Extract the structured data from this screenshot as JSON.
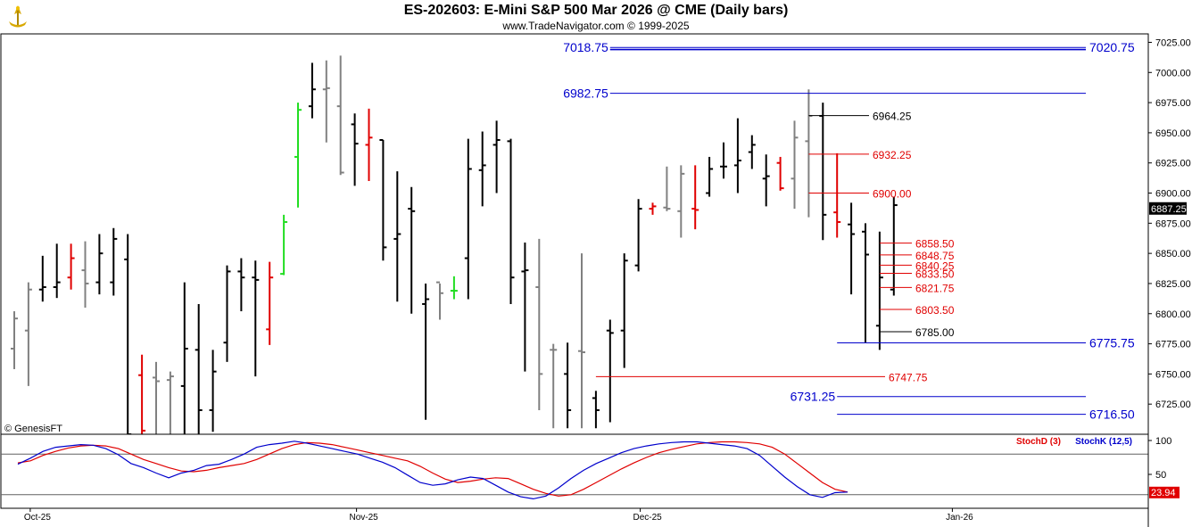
{
  "header": {
    "title": "ES-202603:  E-Mini S&P 500 Mar 2026 @ CME  (Daily bars)",
    "subtitle": "www.TradeNavigator.com © 1999-2025"
  },
  "watermark": "© GenesisFT",
  "logo_icon": "trade-navigator-logo-icon",
  "colors": {
    "bar_default": "#000000",
    "bar_gray": "#808080",
    "bar_red": "#e00000",
    "bar_green": "#22dd22",
    "level_blue": "#0000cc",
    "level_red": "#e00000",
    "level_black": "#000000",
    "stochD": "#e00000",
    "stochK": "#0000cc"
  },
  "chart_data": [
    {
      "type": "ohlc",
      "panel": "price",
      "ylim": [
        6700,
        7032
      ],
      "y_ticks": [
        6725,
        6750,
        6775,
        6800,
        6825,
        6850,
        6875,
        6900,
        6925,
        6950,
        6975,
        7000,
        7025
      ],
      "x_ticks": [
        {
          "label": "Oct-25",
          "bar": 1
        },
        {
          "label": "Nov-25",
          "bar": 24
        },
        {
          "label": "Dec-25",
          "bar": 44
        },
        {
          "label": "Jan-26",
          "bar": 66
        }
      ],
      "last_price": "6887.25",
      "bars": [
        {
          "o": 6771,
          "h": 6802,
          "l": 6754,
          "c": 6796,
          "color": "gray"
        },
        {
          "o": 6786,
          "h": 6826,
          "l": 6740,
          "c": 6820,
          "color": "gray"
        },
        {
          "o": 6820,
          "h": 6848,
          "l": 6810,
          "c": 6822,
          "color": "black"
        },
        {
          "o": 6822,
          "h": 6858,
          "l": 6813,
          "c": 6826,
          "color": "black"
        },
        {
          "o": 6830,
          "h": 6858,
          "l": 6820,
          "c": 6846,
          "color": "red"
        },
        {
          "o": 6836,
          "h": 6860,
          "l": 6805,
          "c": 6825,
          "color": "gray"
        },
        {
          "o": 6826,
          "h": 6866,
          "l": 6816,
          "c": 6850,
          "color": "black"
        },
        {
          "o": 6826,
          "h": 6871,
          "l": 6815,
          "c": 6862,
          "color": "black"
        },
        {
          "o": 6845,
          "h": 6866,
          "l": 6690,
          "c": 6700,
          "color": "black"
        },
        {
          "o": 6749,
          "h": 6766,
          "l": 6690,
          "c": 6703,
          "color": "red"
        },
        {
          "o": 6747,
          "h": 6760,
          "l": 6700,
          "c": 6744,
          "color": "gray"
        },
        {
          "o": 6745,
          "h": 6752,
          "l": 6700,
          "c": 6748,
          "color": "gray"
        },
        {
          "o": 6740,
          "h": 6826,
          "l": 6700,
          "c": 6771,
          "color": "black"
        },
        {
          "o": 6770,
          "h": 6808,
          "l": 6700,
          "c": 6720,
          "color": "black"
        },
        {
          "o": 6720,
          "h": 6770,
          "l": 6702,
          "c": 6752,
          "color": "black"
        },
        {
          "o": 6776,
          "h": 6840,
          "l": 6760,
          "c": 6835,
          "color": "black"
        },
        {
          "o": 6835,
          "h": 6846,
          "l": 6802,
          "c": 6830,
          "color": "black"
        },
        {
          "o": 6830,
          "h": 6844,
          "l": 6748,
          "c": 6828,
          "color": "black"
        },
        {
          "o": 6787,
          "h": 6843,
          "l": 6774,
          "c": 6830,
          "color": "red"
        },
        {
          "o": 6833,
          "h": 6882,
          "l": 6832,
          "c": 6876,
          "color": "green"
        },
        {
          "o": 6930,
          "h": 6975,
          "l": 6888,
          "c": 6969,
          "color": "green"
        },
        {
          "o": 6972,
          "h": 7008,
          "l": 6962,
          "c": 6986,
          "color": "black"
        },
        {
          "o": 6986,
          "h": 7010,
          "l": 6942,
          "c": 6987,
          "color": "gray"
        },
        {
          "o": 6972,
          "h": 7014,
          "l": 6915,
          "c": 6917,
          "color": "gray"
        },
        {
          "o": 6957,
          "h": 6966,
          "l": 6906,
          "c": 6941,
          "color": "black"
        },
        {
          "o": 6940,
          "h": 6970,
          "l": 6910,
          "c": 6946,
          "color": "red"
        },
        {
          "o": 6944,
          "h": 6944,
          "l": 6844,
          "c": 6855,
          "color": "black"
        },
        {
          "o": 6862,
          "h": 6918,
          "l": 6810,
          "c": 6866,
          "color": "black"
        },
        {
          "o": 6887,
          "h": 6905,
          "l": 6800,
          "c": 6885,
          "color": "black"
        },
        {
          "o": 6808,
          "h": 6825,
          "l": 6712,
          "c": 6812,
          "color": "black"
        },
        {
          "o": 6826,
          "h": 6825,
          "l": 6795,
          "c": 6817,
          "color": "gray"
        },
        {
          "o": 6819,
          "h": 6831,
          "l": 6812,
          "c": 6819,
          "color": "green"
        },
        {
          "o": 6846,
          "h": 6945,
          "l": 6812,
          "c": 6920,
          "color": "black"
        },
        {
          "o": 6919,
          "h": 6951,
          "l": 6889,
          "c": 6923,
          "color": "black"
        },
        {
          "o": 6940,
          "h": 6960,
          "l": 6900,
          "c": 6944,
          "color": "black"
        },
        {
          "o": 6943,
          "h": 6945,
          "l": 6808,
          "c": 6830,
          "color": "black"
        },
        {
          "o": 6835,
          "h": 6859,
          "l": 6752,
          "c": 6836,
          "color": "black"
        },
        {
          "o": 6822,
          "h": 6862,
          "l": 6720,
          "c": 6750,
          "color": "gray"
        },
        {
          "o": 6770,
          "h": 6775,
          "l": 6705,
          "c": 6770,
          "color": "gray"
        },
        {
          "o": 6750,
          "h": 6776,
          "l": 6705,
          "c": 6720,
          "color": "black"
        },
        {
          "o": 6769,
          "h": 6850,
          "l": 6705,
          "c": 6768,
          "color": "gray"
        },
        {
          "o": 6730,
          "h": 6736,
          "l": 6705,
          "c": 6720,
          "color": "black"
        },
        {
          "o": 6786,
          "h": 6795,
          "l": 6710,
          "c": 6784,
          "color": "black"
        },
        {
          "o": 6786,
          "h": 6850,
          "l": 6755,
          "c": 6844,
          "color": "black"
        },
        {
          "o": 6840,
          "h": 6895,
          "l": 6835,
          "c": 6887,
          "color": "black"
        },
        {
          "o": 6887,
          "h": 6892,
          "l": 6882,
          "c": 6889,
          "color": "red"
        },
        {
          "o": 6888,
          "h": 6922,
          "l": 6885,
          "c": 6887,
          "color": "gray"
        },
        {
          "o": 6885,
          "h": 6923,
          "l": 6863,
          "c": 6916,
          "color": "gray"
        },
        {
          "o": 6887,
          "h": 6923,
          "l": 6870,
          "c": 6886,
          "color": "red"
        },
        {
          "o": 6900,
          "h": 6930,
          "l": 6897,
          "c": 6920,
          "color": "black"
        },
        {
          "o": 6922,
          "h": 6942,
          "l": 6912,
          "c": 6922,
          "color": "black"
        },
        {
          "o": 6923,
          "h": 6962,
          "l": 6900,
          "c": 6927,
          "color": "black"
        },
        {
          "o": 6934,
          "h": 6948,
          "l": 6920,
          "c": 6940,
          "color": "black"
        },
        {
          "o": 6912,
          "h": 6932,
          "l": 6889,
          "c": 6914,
          "color": "black"
        },
        {
          "o": 6925,
          "h": 6930,
          "l": 6902,
          "c": 6904,
          "color": "red"
        },
        {
          "o": 6912,
          "h": 6960,
          "l": 6887,
          "c": 6946,
          "color": "gray"
        },
        {
          "o": 6943,
          "h": 6986,
          "l": 6880,
          "c": 6964,
          "color": "gray"
        },
        {
          "o": 6964,
          "h": 6975,
          "l": 6861,
          "c": 6882,
          "color": "black"
        },
        {
          "o": 6884,
          "h": 6933,
          "l": 6863,
          "c": 6876,
          "color": "red"
        },
        {
          "o": 6874,
          "h": 6892,
          "l": 6816,
          "c": 6866,
          "color": "black"
        },
        {
          "o": 6868,
          "h": 6875,
          "l": 6776,
          "c": 6849,
          "color": "black"
        },
        {
          "o": 6790,
          "h": 6868,
          "l": 6770,
          "c": 6830,
          "color": "black"
        },
        {
          "o": 6820,
          "h": 6897,
          "l": 6815,
          "c": 6890,
          "color": "black"
        }
      ],
      "levels": [
        {
          "value": 7020.75,
          "label": "7020.75",
          "color": "blue",
          "from_bar": 42,
          "label_side": "right",
          "double": true
        },
        {
          "value": 7018.75,
          "label": "7018.75",
          "color": "blue",
          "from_bar": 42,
          "label_side": "left"
        },
        {
          "value": 6982.75,
          "label": "6982.75",
          "color": "blue",
          "from_bar": 42,
          "label_side": "left"
        },
        {
          "value": 6964.25,
          "label": "6964.25",
          "color": "black",
          "from_bar": 56,
          "label_side": "end"
        },
        {
          "value": 6932.25,
          "label": "6932.25",
          "color": "red",
          "from_bar": 56,
          "label_side": "end"
        },
        {
          "value": 6900.0,
          "label": "6900.00",
          "color": "red",
          "from_bar": 56,
          "label_side": "end"
        },
        {
          "value": 6858.5,
          "label": "6858.50",
          "color": "red",
          "from_bar": 61,
          "label_side": "end"
        },
        {
          "value": 6848.75,
          "label": "6848.75",
          "color": "red",
          "from_bar": 61,
          "label_side": "end"
        },
        {
          "value": 6840.25,
          "label": "6840.25",
          "color": "red",
          "from_bar": 61,
          "label_side": "end"
        },
        {
          "value": 6833.5,
          "label": "6833.50",
          "color": "red",
          "from_bar": 61,
          "label_side": "end"
        },
        {
          "value": 6821.75,
          "label": "6821.75",
          "color": "red",
          "from_bar": 61,
          "label_side": "end"
        },
        {
          "value": 6803.5,
          "label": "6803.50",
          "color": "red",
          "from_bar": 61,
          "label_side": "end"
        },
        {
          "value": 6785.0,
          "label": "6785.00",
          "color": "black",
          "from_bar": 61,
          "label_side": "end"
        },
        {
          "value": 6775.75,
          "label": "6775.75",
          "color": "blue",
          "from_bar": 58,
          "label_side": "right"
        },
        {
          "value": 6747.75,
          "label": "6747.75",
          "color": "red",
          "from_bar": 41,
          "label_side": "end"
        },
        {
          "value": 6731.25,
          "label": "6731.25",
          "color": "blue",
          "from_bar": 58,
          "label_side": "left"
        },
        {
          "value": 6716.5,
          "label": "6716.50",
          "color": "blue",
          "from_bar": 58,
          "label_side": "right"
        }
      ]
    },
    {
      "type": "line",
      "panel": "stochastic",
      "ylim": [
        0,
        100
      ],
      "y_ticks": [
        50,
        100
      ],
      "reference_lines": [
        20,
        80
      ],
      "last_value": "23.94",
      "series": [
        {
          "name": "StochD (3)",
          "color": "red",
          "values": [
            67,
            70,
            78,
            84,
            89,
            92,
            93,
            92,
            88,
            80,
            72,
            66,
            60,
            55,
            54,
            56,
            60,
            63,
            66,
            72,
            80,
            88,
            94,
            97,
            96,
            94,
            90,
            86,
            82,
            78,
            74,
            70,
            62,
            52,
            43,
            38,
            40,
            43,
            45,
            44,
            36,
            28,
            22,
            18,
            20,
            28,
            38,
            48,
            58,
            67,
            75,
            82,
            87,
            91,
            95,
            97,
            98,
            98,
            97,
            95,
            90,
            80,
            66,
            52,
            38,
            28,
            24
          ]
        },
        {
          "name": "StochK (12,5)",
          "color": "blue",
          "values": [
            65,
            74,
            84,
            90,
            92,
            94,
            93,
            88,
            79,
            66,
            60,
            52,
            45,
            52,
            56,
            63,
            65,
            72,
            80,
            90,
            94,
            96,
            99,
            96,
            92,
            88,
            84,
            80,
            74,
            68,
            60,
            49,
            38,
            34,
            36,
            42,
            46,
            44,
            34,
            24,
            17,
            14,
            18,
            30,
            44,
            56,
            66,
            74,
            82,
            88,
            92,
            95,
            97,
            98,
            98,
            96,
            94,
            92,
            88,
            78,
            62,
            46,
            32,
            20,
            16,
            23,
            24
          ]
        }
      ]
    }
  ]
}
